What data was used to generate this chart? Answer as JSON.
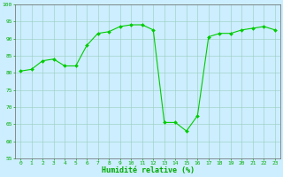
{
  "x": [
    0,
    1,
    2,
    3,
    4,
    5,
    6,
    7,
    8,
    9,
    10,
    11,
    12,
    13,
    14,
    15,
    16,
    17,
    18,
    19,
    20,
    21,
    22,
    23
  ],
  "y": [
    80.5,
    81,
    83.5,
    84,
    82,
    82,
    88,
    91.5,
    92,
    93.5,
    94,
    94,
    92.5,
    65.5,
    65.5,
    63,
    67.5,
    90.5,
    91.5,
    91.5,
    92.5,
    93,
    93.5,
    92.5
  ],
  "line_color": "#00cc00",
  "marker_color": "#00cc00",
  "bg_color": "#cceeff",
  "grid_color": "#99ccbb",
  "xlabel": "Humidité relative (%)",
  "ylim": [
    55,
    100
  ],
  "xlim_min": -0.5,
  "xlim_max": 23.5,
  "yticks": [
    55,
    60,
    65,
    70,
    75,
    80,
    85,
    90,
    95,
    100
  ],
  "xticks": [
    0,
    1,
    2,
    3,
    4,
    5,
    6,
    7,
    8,
    9,
    10,
    11,
    12,
    13,
    14,
    15,
    16,
    17,
    18,
    19,
    20,
    21,
    22,
    23
  ],
  "tick_color": "#00aa00",
  "label_color": "#00aa00",
  "spine_color": "#666666",
  "tick_fontsize": 4.5,
  "xlabel_fontsize": 6.0
}
